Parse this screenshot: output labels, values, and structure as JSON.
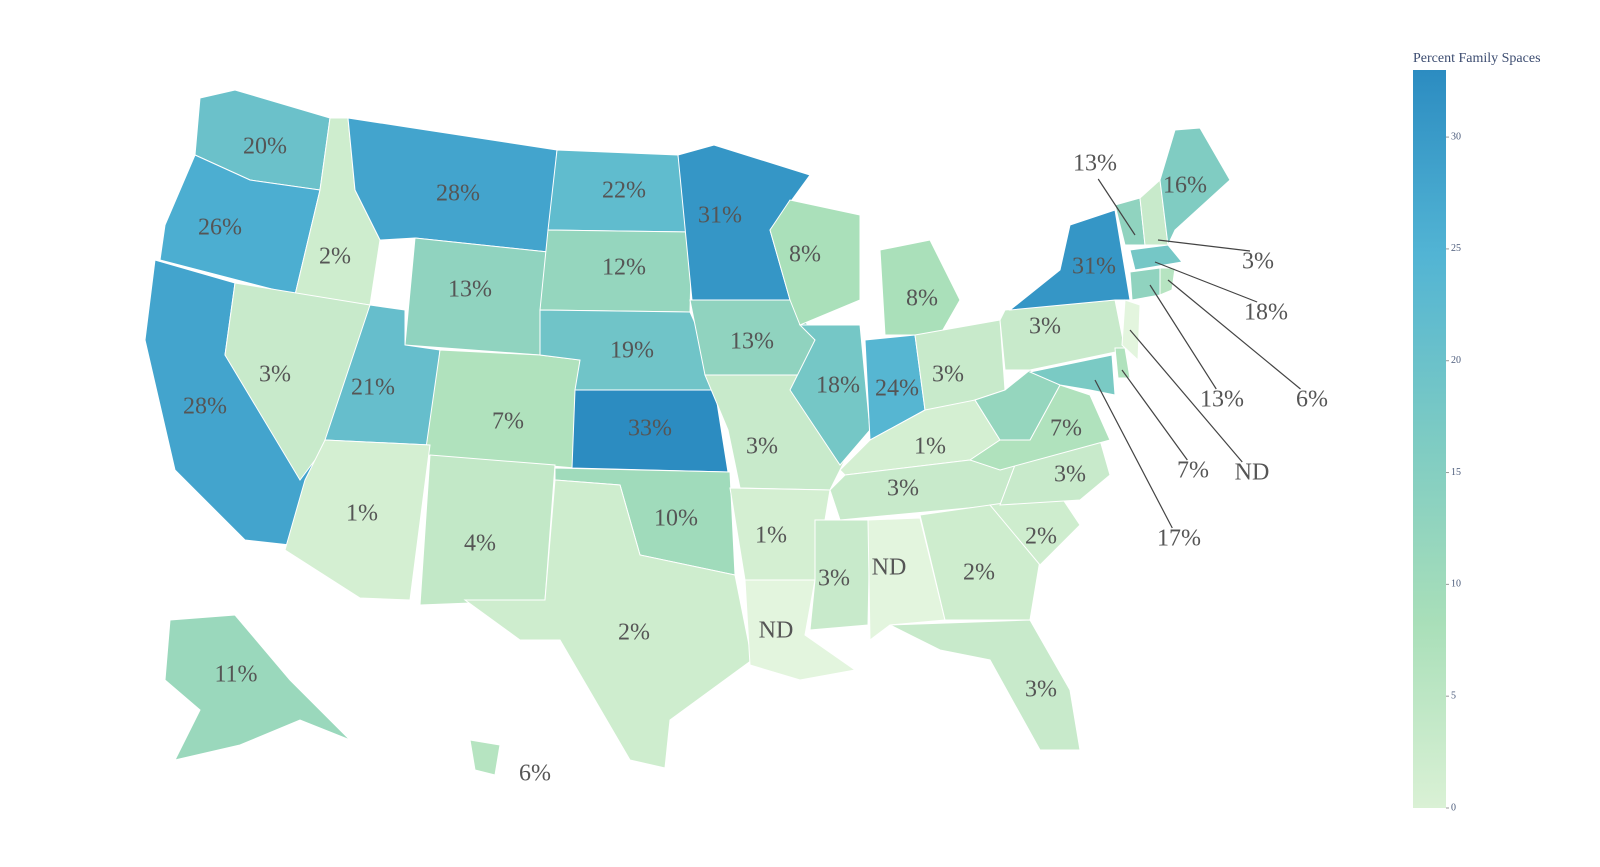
{
  "chart_data": {
    "type": "choropleth",
    "values": [
      20,
      26,
      28,
      2,
      3,
      28,
      13,
      21,
      7,
      1,
      4,
      22,
      12,
      19,
      33,
      10,
      2,
      31,
      13,
      3,
      1,
      null,
      8,
      18,
      8,
      24,
      3,
      1,
      3,
      3,
      null,
      2,
      3,
      2,
      3,
      7,
      12,
      3,
      31,
      13,
      3,
      16,
      18,
      13,
      6,
      null,
      7,
      17,
      11,
      6
    ],
    "value_labels": [
      "20%",
      "26%",
      "28%",
      "2%",
      "3%",
      "28%",
      "13%",
      "21%",
      "7%",
      "1%",
      "4%",
      "22%",
      "12%",
      "19%",
      "33%",
      "10%",
      "2%",
      "31%",
      "13%",
      "3%",
      "1%",
      "ND",
      "8%",
      "18%",
      "8%",
      "24%",
      "3%",
      "1%",
      "3%",
      "3%",
      "ND",
      "2%",
      "3%",
      "2%",
      "3%",
      "7%",
      null,
      "3%",
      "31%",
      "13%",
      "3%",
      "16%",
      "18%",
      "13%",
      "6%",
      "ND",
      "7%",
      "17%",
      "11%",
      "6%"
    ],
    "colorscale": [
      "#daf1d5",
      "#a9dfb9",
      "#7dcbc3",
      "#52b4d4",
      "#2c8cc1"
    ],
    "missing_color": "#e3f5de",
    "zlim": [
      0,
      33
    ],
    "colorbar_title": "Percent Family Spaces",
    "colorbar_ticks": [
      0,
      5,
      10,
      15,
      20,
      25,
      30
    ]
  }
}
